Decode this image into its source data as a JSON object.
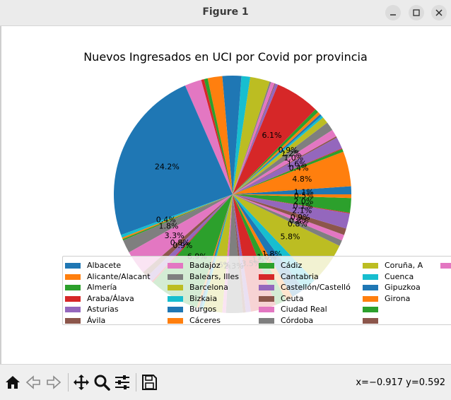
{
  "window": {
    "title": "Figure 1"
  },
  "status": {
    "coords": "x=−0.917 y=0.592"
  },
  "chart_data": {
    "type": "pie",
    "title": "Nuevos Ingresados en UCI por Covid por provincia",
    "start_angle_deg": 0,
    "direction": "counterclockwise",
    "legend_position": "bottom-center",
    "slices": [
      {
        "label": "Albacete",
        "value": 1.1,
        "color": "#1f77b4",
        "show_pct": true
      },
      {
        "label": "Alicante/Alacant",
        "value": 4.8,
        "color": "#ff7f0e",
        "show_pct": true
      },
      {
        "label": "Almería",
        "value": 0.4,
        "color": "#2ca02c",
        "show_pct": true
      },
      {
        "label": "Araba/Álava",
        "value": 0.1,
        "color": "#d62728",
        "show_pct": false
      },
      {
        "label": "Asturias",
        "value": 1.6,
        "color": "#9467bd",
        "show_pct": true
      },
      {
        "label": "Ávila",
        "value": 0.2,
        "color": "#8c564b",
        "show_pct": false
      },
      {
        "label": "Badajoz",
        "value": 1.0,
        "color": "#e377c2",
        "show_pct": true
      },
      {
        "label": "Balears, Illes",
        "value": 1.2,
        "color": "#7f7f7f",
        "show_pct": true
      },
      {
        "label": "Barcelona",
        "value": 0.9,
        "color": "#bcbd22",
        "show_pct": true
      },
      {
        "label": "Bizkaia",
        "value": 0.3,
        "color": "#17becf",
        "show_pct": false
      },
      {
        "label": "Burgos",
        "value": 0.3,
        "color": "#1f77b4",
        "show_pct": false
      },
      {
        "label": "Cáceres",
        "value": 0.4,
        "color": "#ff7f0e",
        "show_pct": false
      },
      {
        "label": "Cádiz",
        "value": 0.5,
        "color": "#2ca02c",
        "show_pct": false
      },
      {
        "label": "Cantabria",
        "value": 6.1,
        "color": "#d62728",
        "show_pct": true
      },
      {
        "label": "Castellón/Castelló",
        "value": 0.4,
        "color": "#9467bd",
        "show_pct": false
      },
      {
        "label": "Ceuta",
        "value": 0.1,
        "color": "#8c564b",
        "show_pct": false
      },
      {
        "label": "Ciudad Real",
        "value": 0.5,
        "color": "#e377c2",
        "show_pct": false
      },
      {
        "label": "Córdoba",
        "value": 0.2,
        "color": "#7f7f7f",
        "show_pct": false
      },
      {
        "label": "Coruña, A",
        "value": 2.7,
        "color": "#bcbd22",
        "show_pct": false
      },
      {
        "label": "Cuenca",
        "value": 1.2,
        "color": "#17becf",
        "show_pct": false
      },
      {
        "label": "Gipuzkoa",
        "value": 2.6,
        "color": "#1f77b4",
        "show_pct": false
      },
      {
        "label": "Girona",
        "value": 2.0,
        "color": "#ff7f0e",
        "show_pct": false
      },
      {
        "label": "",
        "value": 0.5,
        "color": "#2ca02c",
        "show_pct": false
      },
      {
        "label": "",
        "value": 0.4,
        "color": "#d62728",
        "show_pct": false
      },
      {
        "label": "",
        "value": 2.3,
        "color": "#e377c2",
        "show_pct": false
      },
      {
        "label": "",
        "value": 24.2,
        "color": "#1f77b4",
        "show_pct": true
      },
      {
        "label": "",
        "value": 0.4,
        "color": "#17becf",
        "show_pct": true
      },
      {
        "label": "",
        "value": 0.2,
        "color": "#ff7f0e",
        "show_pct": false
      },
      {
        "label": "",
        "value": 0.2,
        "color": "#2ca02c",
        "show_pct": false
      },
      {
        "label": "",
        "value": 1.8,
        "color": "#7f7f7f",
        "show_pct": true
      },
      {
        "label": "",
        "value": 3.3,
        "color": "#e377c2",
        "show_pct": true
      },
      {
        "label": "",
        "value": 0.8,
        "color": "#8c564b",
        "show_pct": true
      },
      {
        "label": "",
        "value": 0.9,
        "color": "#9467bd",
        "show_pct": true
      },
      {
        "label": "",
        "value": 0.2,
        "color": "#d62728",
        "show_pct": false
      },
      {
        "label": "",
        "value": 6.9,
        "color": "#2ca02c",
        "show_pct": true
      },
      {
        "label": "",
        "value": 0.3,
        "color": "#ff7f0e",
        "show_pct": false
      },
      {
        "label": "",
        "value": 0.3,
        "color": "#1f77b4",
        "show_pct": false
      },
      {
        "label": "",
        "value": 0.3,
        "color": "#17becf",
        "show_pct": false
      },
      {
        "label": "",
        "value": 2.6,
        "color": "#bcbd22",
        "show_pct": true
      },
      {
        "label": "",
        "value": 0.5,
        "color": "#e377c2",
        "show_pct": false
      },
      {
        "label": "",
        "value": 2.3,
        "color": "#7f7f7f",
        "show_pct": true
      },
      {
        "label": "",
        "value": 0.4,
        "color": "#8c564b",
        "show_pct": false
      },
      {
        "label": "",
        "value": 0.7,
        "color": "#9467bd",
        "show_pct": false
      },
      {
        "label": "",
        "value": 3.5,
        "color": "#d62728",
        "show_pct": true
      },
      {
        "label": "",
        "value": 1.5,
        "color": "#2ca02c",
        "show_pct": true
      },
      {
        "label": "",
        "value": 1.0,
        "color": "#ff7f0e",
        "show_pct": true
      },
      {
        "label": "",
        "value": 1.8,
        "color": "#1f77b4",
        "show_pct": true
      },
      {
        "label": "",
        "value": 1.9,
        "color": "#17becf",
        "show_pct": false
      },
      {
        "label": "",
        "value": 5.8,
        "color": "#bcbd22",
        "show_pct": true
      },
      {
        "label": "",
        "value": 0.8,
        "color": "#7f7f7f",
        "show_pct": true
      },
      {
        "label": "",
        "value": 0.8,
        "color": "#e377c2",
        "show_pct": true
      },
      {
        "label": "",
        "value": 0.9,
        "color": "#8c564b",
        "show_pct": true
      },
      {
        "label": "",
        "value": 2.1,
        "color": "#9467bd",
        "show_pct": true
      },
      {
        "label": "",
        "value": 0.1,
        "color": "#d62728",
        "show_pct": true
      },
      {
        "label": "",
        "value": 2.0,
        "color": "#2ca02c",
        "show_pct": true
      },
      {
        "label": "",
        "value": 0.5,
        "color": "#ff7f0e",
        "show_pct": true
      }
    ],
    "legend_rows": 6,
    "legend_entries": [
      {
        "label": "Albacete",
        "color": "#1f77b4"
      },
      {
        "label": "Alicante/Alacant",
        "color": "#ff7f0e"
      },
      {
        "label": "Almería",
        "color": "#2ca02c"
      },
      {
        "label": "Araba/Álava",
        "color": "#d62728"
      },
      {
        "label": "Asturias",
        "color": "#9467bd"
      },
      {
        "label": "Ávila",
        "color": "#8c564b"
      },
      {
        "label": "Badajoz",
        "color": "#e377c2"
      },
      {
        "label": "Balears, Illes",
        "color": "#7f7f7f"
      },
      {
        "label": "Barcelona",
        "color": "#bcbd22"
      },
      {
        "label": "Bizkaia",
        "color": "#17becf"
      },
      {
        "label": "Burgos",
        "color": "#1f77b4"
      },
      {
        "label": "Cáceres",
        "color": "#ff7f0e"
      },
      {
        "label": "Cádiz",
        "color": "#2ca02c"
      },
      {
        "label": "Cantabria",
        "color": "#d62728"
      },
      {
        "label": "Castellón/Castelló",
        "color": "#9467bd"
      },
      {
        "label": "Ceuta",
        "color": "#8c564b"
      },
      {
        "label": "Ciudad Real",
        "color": "#e377c2"
      },
      {
        "label": "Córdoba",
        "color": "#7f7f7f"
      },
      {
        "label": "Coruña, A",
        "color": "#bcbd22"
      },
      {
        "label": "Cuenca",
        "color": "#17becf"
      },
      {
        "label": "Gipuzkoa",
        "color": "#1f77b4"
      },
      {
        "label": "Girona",
        "color": "#ff7f0e"
      },
      {
        "label": "",
        "color": "#2ca02c"
      },
      {
        "label": "",
        "color": "#8c564b"
      },
      {
        "label": "",
        "color": "#e377c2"
      }
    ]
  }
}
